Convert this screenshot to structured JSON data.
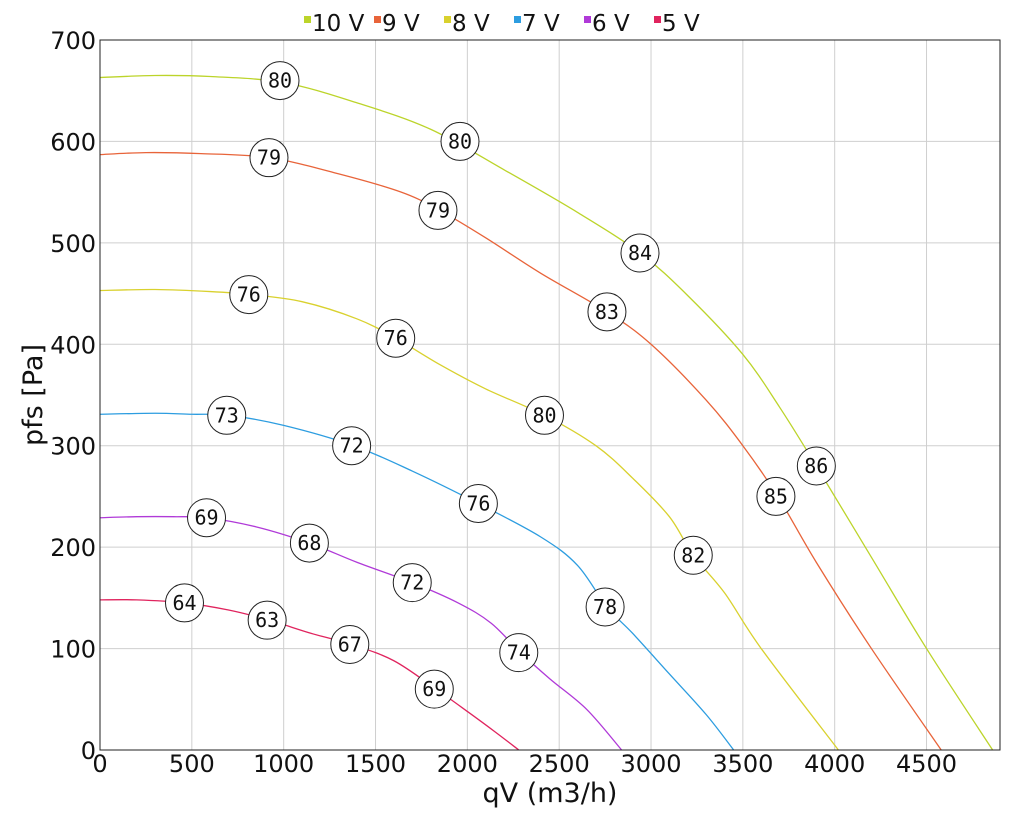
{
  "chart_data": {
    "type": "line",
    "xlabel": "qV (m3/h)",
    "ylabel": "pfs [Pa]",
    "xlim": [
      0,
      4900
    ],
    "ylim": [
      0,
      700
    ],
    "x_ticks": [
      "0",
      "500",
      "1000",
      "1500",
      "2000",
      "2500",
      "3000",
      "3500",
      "4000",
      "4500"
    ],
    "y_ticks": [
      "0",
      "100",
      "200",
      "300",
      "400",
      "500",
      "600",
      "700"
    ],
    "grid": true,
    "legend_position": "top",
    "series": [
      {
        "name": "10 V",
        "color": "#bcd42a",
        "points": [
          [
            0,
            663
          ],
          [
            300,
            665
          ],
          [
            600,
            664
          ],
          [
            1000,
            658
          ],
          [
            1400,
            638
          ],
          [
            1800,
            612
          ],
          [
            2200,
            572
          ],
          [
            2600,
            530
          ],
          [
            2940,
            490
          ],
          [
            3200,
            448
          ],
          [
            3500,
            390
          ],
          [
            3700,
            338
          ],
          [
            3900,
            280
          ],
          [
            4200,
            190
          ],
          [
            4500,
            100
          ],
          [
            4860,
            0
          ]
        ],
        "labels": [
          {
            "x": 980,
            "y": 660,
            "text": "80"
          },
          {
            "x": 1960,
            "y": 600,
            "text": "80"
          },
          {
            "x": 2940,
            "y": 490,
            "text": "84"
          },
          {
            "x": 3900,
            "y": 280,
            "text": "86"
          }
        ]
      },
      {
        "name": "9 V",
        "color": "#e8643a",
        "points": [
          [
            0,
            587
          ],
          [
            250,
            589
          ],
          [
            550,
            588
          ],
          [
            920,
            584
          ],
          [
            1300,
            568
          ],
          [
            1640,
            550
          ],
          [
            1850,
            532
          ],
          [
            2100,
            505
          ],
          [
            2400,
            470
          ],
          [
            2760,
            432
          ],
          [
            3000,
            400
          ],
          [
            3300,
            345
          ],
          [
            3500,
            300
          ],
          [
            3690,
            250
          ],
          [
            3900,
            185
          ],
          [
            4200,
            100
          ],
          [
            4580,
            0
          ]
        ],
        "labels": [
          {
            "x": 920,
            "y": 584,
            "text": "79"
          },
          {
            "x": 1840,
            "y": 532,
            "text": "79"
          },
          {
            "x": 2760,
            "y": 432,
            "text": "83"
          },
          {
            "x": 3680,
            "y": 250,
            "text": "85"
          }
        ]
      },
      {
        "name": "8 V",
        "color": "#d9d12e",
        "points": [
          [
            0,
            453
          ],
          [
            300,
            454
          ],
          [
            600,
            452
          ],
          [
            820,
            449
          ],
          [
            1100,
            442
          ],
          [
            1400,
            425
          ],
          [
            1610,
            406
          ],
          [
            1850,
            380
          ],
          [
            2100,
            356
          ],
          [
            2420,
            330
          ],
          [
            2700,
            300
          ],
          [
            2900,
            268
          ],
          [
            3100,
            230
          ],
          [
            3230,
            192
          ],
          [
            3400,
            155
          ],
          [
            3600,
            100
          ],
          [
            4020,
            0
          ]
        ],
        "labels": [
          {
            "x": 810,
            "y": 449,
            "text": "76"
          },
          {
            "x": 1610,
            "y": 406,
            "text": "76"
          },
          {
            "x": 2420,
            "y": 330,
            "text": "80"
          },
          {
            "x": 3230,
            "y": 192,
            "text": "82"
          }
        ]
      },
      {
        "name": "7 V",
        "color": "#2d9de0",
        "points": [
          [
            0,
            331
          ],
          [
            300,
            332
          ],
          [
            500,
            331
          ],
          [
            700,
            330
          ],
          [
            1000,
            320
          ],
          [
            1380,
            300
          ],
          [
            1700,
            275
          ],
          [
            2060,
            243
          ],
          [
            2400,
            210
          ],
          [
            2600,
            182
          ],
          [
            2760,
            141
          ],
          [
            2900,
            115
          ],
          [
            3100,
            75
          ],
          [
            3300,
            35
          ],
          [
            3450,
            0
          ]
        ],
        "labels": [
          {
            "x": 690,
            "y": 330,
            "text": "73"
          },
          {
            "x": 1370,
            "y": 300,
            "text": "72"
          },
          {
            "x": 2060,
            "y": 243,
            "text": "76"
          },
          {
            "x": 2750,
            "y": 141,
            "text": "78"
          }
        ]
      },
      {
        "name": "6 V",
        "color": "#b03ad8",
        "points": [
          [
            0,
            229
          ],
          [
            200,
            230
          ],
          [
            400,
            230
          ],
          [
            580,
            229
          ],
          [
            850,
            220
          ],
          [
            1140,
            204
          ],
          [
            1400,
            185
          ],
          [
            1700,
            165
          ],
          [
            1950,
            145
          ],
          [
            2130,
            125
          ],
          [
            2290,
            96
          ],
          [
            2450,
            70
          ],
          [
            2650,
            40
          ],
          [
            2840,
            0
          ]
        ],
        "labels": [
          {
            "x": 580,
            "y": 229,
            "text": "69"
          },
          {
            "x": 1140,
            "y": 204,
            "text": "68"
          },
          {
            "x": 1700,
            "y": 165,
            "text": "72"
          },
          {
            "x": 2280,
            "y": 96,
            "text": "74"
          }
        ]
      },
      {
        "name": "5 V",
        "color": "#e0245e",
        "points": [
          [
            0,
            148
          ],
          [
            200,
            148
          ],
          [
            460,
            145
          ],
          [
            700,
            138
          ],
          [
            920,
            128
          ],
          [
            1150,
            115
          ],
          [
            1370,
            104
          ],
          [
            1600,
            88
          ],
          [
            1830,
            60
          ],
          [
            2000,
            38
          ],
          [
            2150,
            18
          ],
          [
            2280,
            0
          ]
        ],
        "labels": [
          {
            "x": 460,
            "y": 145,
            "text": "64"
          },
          {
            "x": 910,
            "y": 128,
            "text": "63"
          },
          {
            "x": 1360,
            "y": 104,
            "text": "67"
          },
          {
            "x": 1820,
            "y": 60,
            "text": "69"
          }
        ]
      }
    ]
  }
}
